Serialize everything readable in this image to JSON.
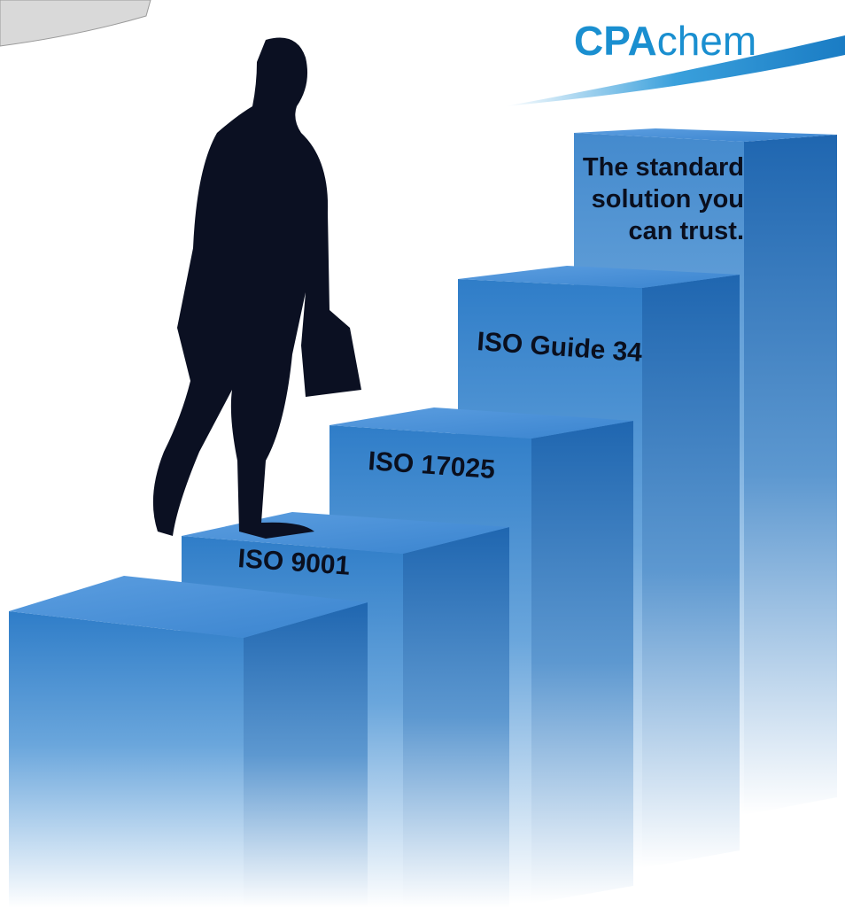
{
  "logo": {
    "brand": "CPA",
    "suffix": "chem"
  },
  "steps": [
    {
      "label": "ISO 9001"
    },
    {
      "label": "ISO 17025"
    },
    {
      "label": "ISO Guide 34"
    }
  ],
  "tagline": [
    "The standard",
    "solution you",
    "can trust."
  ]
}
